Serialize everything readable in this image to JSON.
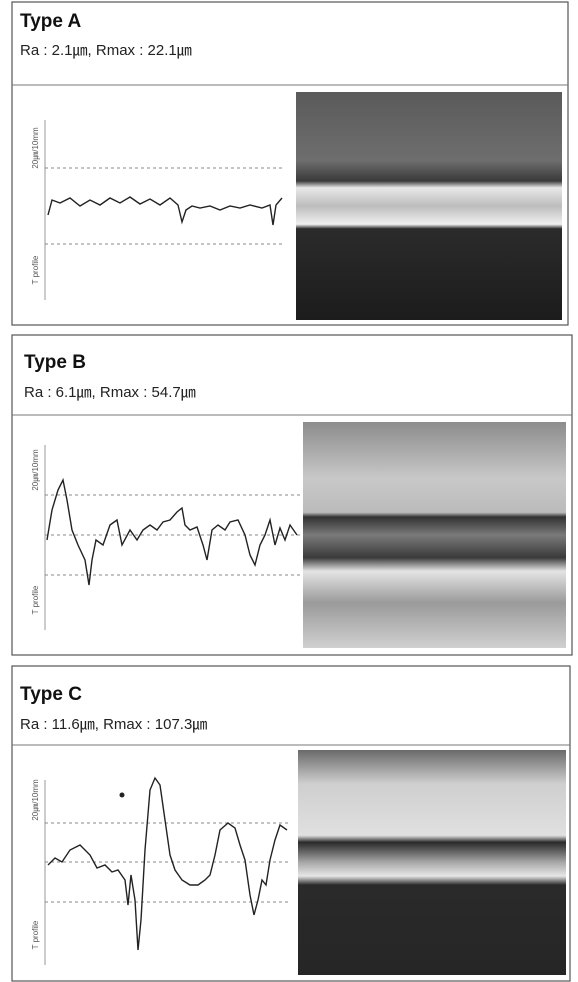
{
  "panels": [
    {
      "title": "Type A",
      "roughness": "Ra : 2.1㎛, Rmax : 22.1㎛",
      "scale_label": "20㎛/10mm",
      "axis_label": "T profile"
    },
    {
      "title": "Type B",
      "roughness": "Ra : 6.1㎛, Rmax : 54.7㎛",
      "scale_label": "20㎛/10mm",
      "axis_label": "T profile"
    },
    {
      "title": "Type C",
      "roughness": "Ra : 11.6㎛, Rmax : 107.3㎛",
      "scale_label": "20㎛/10mm",
      "axis_label": "T profile"
    }
  ]
}
